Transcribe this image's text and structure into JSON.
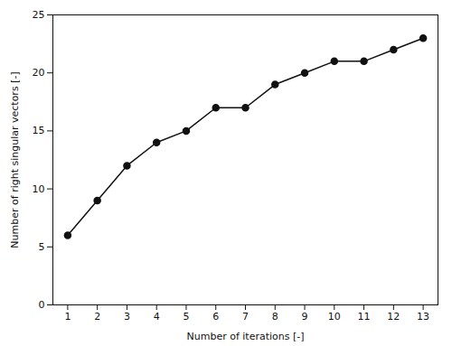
{
  "chart_data": {
    "type": "line",
    "xlabel": "Number of iterations [-]",
    "ylabel": "Number of right singular vectors [-]",
    "x": [
      1,
      2,
      3,
      4,
      5,
      6,
      7,
      8,
      9,
      10,
      11,
      12,
      13
    ],
    "values": [
      6,
      9,
      12,
      14,
      15,
      17,
      17,
      19,
      20,
      21,
      21,
      22,
      23
    ],
    "color": "#111111",
    "marker": "circle",
    "xlim": [
      0.5,
      13.5
    ],
    "ylim": [
      0,
      25
    ],
    "xticks": [
      1,
      2,
      3,
      4,
      5,
      6,
      7,
      8,
      9,
      10,
      11,
      12,
      13
    ],
    "yticks": [
      0,
      5,
      10,
      15,
      20,
      25
    ],
    "grid": false
  }
}
